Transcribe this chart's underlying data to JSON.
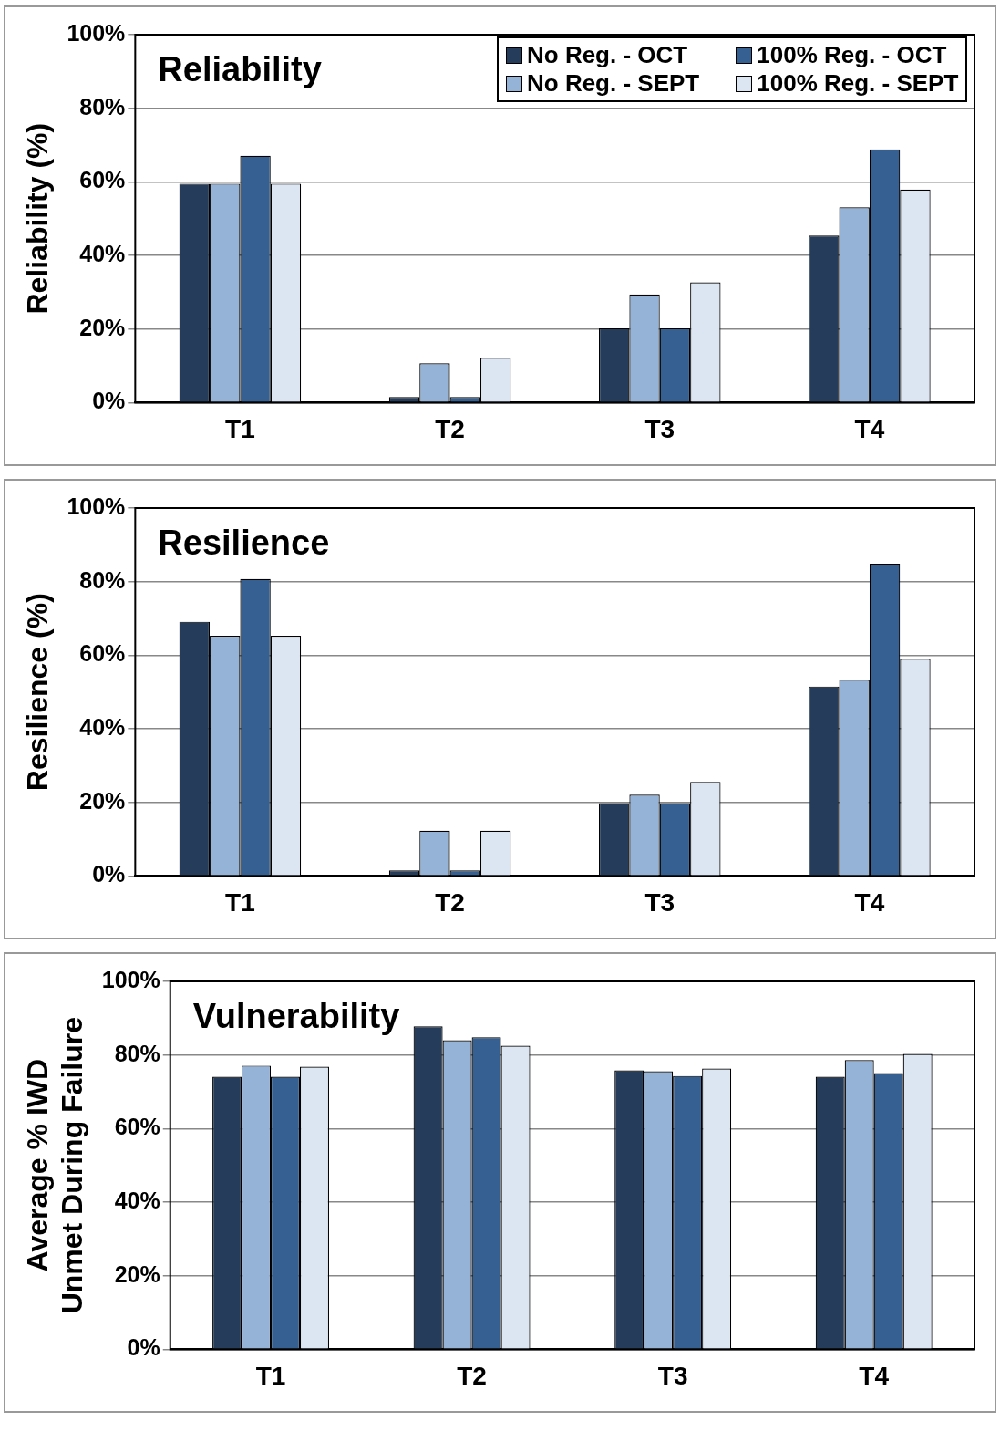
{
  "chart_data": [
    {
      "type": "bar",
      "title": "Reliability",
      "ylabel": "Reliability (%)",
      "categories": [
        "T1",
        "T2",
        "T3",
        "T4"
      ],
      "ylim": [
        0,
        100
      ],
      "yticks": [
        {
          "value": 0,
          "label": "0%"
        },
        {
          "value": 20,
          "label": "20%"
        },
        {
          "value": 40,
          "label": "40%"
        },
        {
          "value": 60,
          "label": "60%"
        },
        {
          "value": 80,
          "label": "80%"
        },
        {
          "value": 100,
          "label": "100%"
        }
      ],
      "grid": "y",
      "legend": "top right",
      "series": [
        {
          "name": "No Reg. - OCT",
          "color": "#253d5b",
          "values": [
            59.5,
            1.5,
            20.2,
            45.4
          ]
        },
        {
          "name": "No Reg. - SEPT",
          "color": "#95b3d7",
          "values": [
            59.5,
            10.7,
            29.4,
            53.1
          ]
        },
        {
          "name": "100% Reg. - OCT",
          "color": "#366092",
          "values": [
            67.1,
            1.5,
            20.2,
            68.8
          ]
        },
        {
          "name": "100% Reg. - SEPT",
          "color": "#dce6f2",
          "values": [
            59.5,
            12.2,
            32.7,
            57.9
          ]
        }
      ]
    },
    {
      "type": "bar",
      "title": "Resilience",
      "ylabel": "Resilience (%)",
      "categories": [
        "T1",
        "T2",
        "T3",
        "T4"
      ],
      "ylim": [
        0,
        100
      ],
      "yticks": [
        {
          "value": 0,
          "label": "0%"
        },
        {
          "value": 20,
          "label": "20%"
        },
        {
          "value": 40,
          "label": "40%"
        },
        {
          "value": 60,
          "label": "60%"
        },
        {
          "value": 80,
          "label": "80%"
        },
        {
          "value": 100,
          "label": "100%"
        }
      ],
      "grid": "y",
      "series": [
        {
          "color": "#253d5b",
          "values": [
            69.1,
            1.5,
            19.8,
            51.5
          ]
        },
        {
          "color": "#95b3d7",
          "values": [
            65.3,
            12.3,
            22.1,
            53.3
          ]
        },
        {
          "color": "#366092",
          "values": [
            80.7,
            1.5,
            19.8,
            84.9
          ]
        },
        {
          "color": "#dce6f2",
          "values": [
            65.3,
            12.3,
            25.6,
            59.0
          ]
        }
      ]
    },
    {
      "type": "bar",
      "title": "Vulnerability",
      "ylabel": "Average % IWD\nUnmet During Failure",
      "categories": [
        "T1",
        "T2",
        "T3",
        "T4"
      ],
      "ylim": [
        0,
        100
      ],
      "yticks": [
        {
          "value": 0,
          "label": "0%"
        },
        {
          "value": 20,
          "label": "20%"
        },
        {
          "value": 40,
          "label": "40%"
        },
        {
          "value": 60,
          "label": "60%"
        },
        {
          "value": 80,
          "label": "80%"
        },
        {
          "value": 100,
          "label": "100%"
        }
      ],
      "grid": "y",
      "series": [
        {
          "color": "#253d5b",
          "values": [
            74.1,
            87.8,
            75.8,
            74.1
          ]
        },
        {
          "color": "#95b3d7",
          "values": [
            77.1,
            84.0,
            75.6,
            78.6
          ]
        },
        {
          "color": "#366092",
          "values": [
            74.1,
            84.8,
            74.3,
            75.1
          ]
        },
        {
          "color": "#dce6f2",
          "values": [
            76.8,
            82.5,
            76.3,
            80.3
          ]
        }
      ]
    }
  ]
}
